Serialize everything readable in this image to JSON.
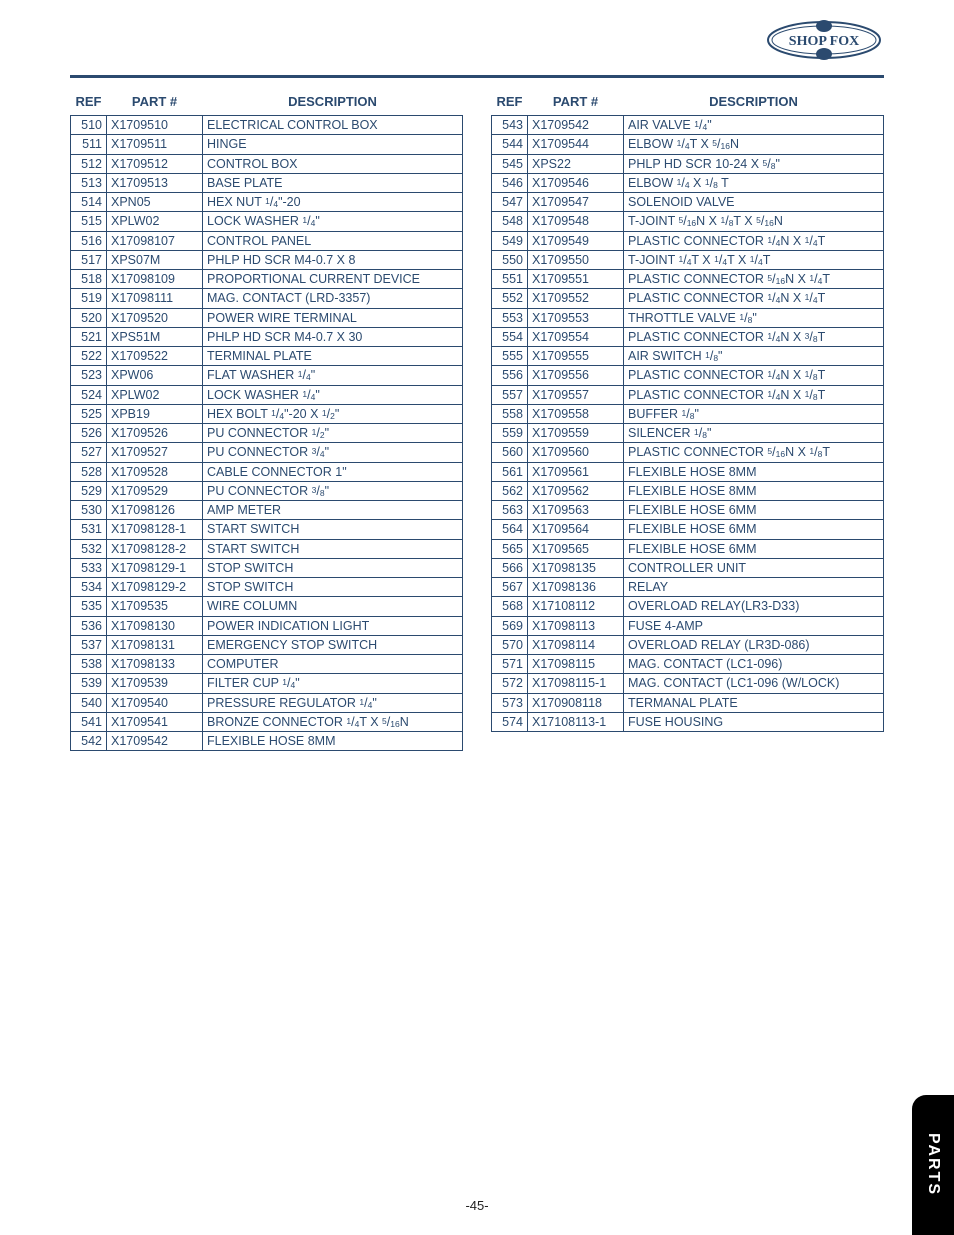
{
  "brand": "SHOP FOX",
  "page_number": "-45-",
  "side_tab": "PARTS",
  "headers": {
    "ref": "REF",
    "part": "PART #",
    "desc": "DESCRIPTION"
  },
  "colors": {
    "ink": "#2b4a6f",
    "rule": "#2b4a6f",
    "tab_bg": "#000000",
    "tab_fg": "#ffffff",
    "bg": "#ffffff"
  },
  "left": [
    {
      "ref": "510",
      "part": "X1709510",
      "desc": "ELECTRICAL CONTROL BOX"
    },
    {
      "ref": "511",
      "part": "X1709511",
      "desc": "HINGE"
    },
    {
      "ref": "512",
      "part": "X1709512",
      "desc": "CONTROL BOX"
    },
    {
      "ref": "513",
      "part": "X1709513",
      "desc": "BASE PLATE"
    },
    {
      "ref": "514",
      "part": "XPN05",
      "desc": "HEX NUT {1/4}\"-20"
    },
    {
      "ref": "515",
      "part": "XPLW02",
      "desc": "LOCK WASHER {1/4}\""
    },
    {
      "ref": "516",
      "part": "X17098107",
      "desc": "CONTROL PANEL"
    },
    {
      "ref": "517",
      "part": "XPS07M",
      "desc": "PHLP HD SCR M4-0.7 X 8"
    },
    {
      "ref": "518",
      "part": "X17098109",
      "desc": "PROPORTIONAL CURRENT DEVICE"
    },
    {
      "ref": "519",
      "part": "X17098111",
      "desc": "MAG. CONTACT (LRD-3357)"
    },
    {
      "ref": "520",
      "part": "X1709520",
      "desc": "POWER WIRE TERMINAL"
    },
    {
      "ref": "521",
      "part": "XPS51M",
      "desc": "PHLP HD SCR M4-0.7 X 30"
    },
    {
      "ref": "522",
      "part": "X1709522",
      "desc": "TERMINAL PLATE"
    },
    {
      "ref": "523",
      "part": "XPW06",
      "desc": "FLAT WASHER {1/4}\""
    },
    {
      "ref": "524",
      "part": "XPLW02",
      "desc": "LOCK WASHER {1/4}\""
    },
    {
      "ref": "525",
      "part": "XPB19",
      "desc": "HEX BOLT  {1/4}\"-20 X {1/2}\""
    },
    {
      "ref": "526",
      "part": "X1709526",
      "desc": "PU CONNECTOR {1/2}\""
    },
    {
      "ref": "527",
      "part": "X1709527",
      "desc": "PU CONNECTOR {3/4}\""
    },
    {
      "ref": "528",
      "part": "X1709528",
      "desc": "CABLE CONNECTOR 1\""
    },
    {
      "ref": "529",
      "part": "X1709529",
      "desc": "PU CONNECTOR {3/8}\""
    },
    {
      "ref": "530",
      "part": "X17098126",
      "desc": "AMP METER"
    },
    {
      "ref": "531",
      "part": "X17098128-1",
      "desc": "START SWITCH"
    },
    {
      "ref": "532",
      "part": "X17098128-2",
      "desc": "START SWITCH"
    },
    {
      "ref": "533",
      "part": "X17098129-1",
      "desc": "STOP SWITCH"
    },
    {
      "ref": "534",
      "part": "X17098129-2",
      "desc": "STOP SWITCH"
    },
    {
      "ref": "535",
      "part": "X1709535",
      "desc": "WIRE COLUMN"
    },
    {
      "ref": "536",
      "part": "X17098130",
      "desc": "POWER INDICATION LIGHT"
    },
    {
      "ref": "537",
      "part": "X17098131",
      "desc": "EMERGENCY STOP SWITCH"
    },
    {
      "ref": "538",
      "part": "X17098133",
      "desc": "COMPUTER"
    },
    {
      "ref": "539",
      "part": "X1709539",
      "desc": "FILTER CUP {1/4}\""
    },
    {
      "ref": "540",
      "part": "X1709540",
      "desc": "PRESSURE REGULATOR {1/4}\""
    },
    {
      "ref": "541",
      "part": "X1709541",
      "desc": "BRONZE CONNECTOR {1/4}T X {5/16}N"
    },
    {
      "ref": "542",
      "part": "X1709542",
      "desc": "FLEXIBLE HOSE 8MM"
    }
  ],
  "right": [
    {
      "ref": "543",
      "part": "X1709542",
      "desc": "AIR VALVE {1/4}\""
    },
    {
      "ref": "544",
      "part": "X1709544",
      "desc": "ELBOW {1/4}T X {5/16}N"
    },
    {
      "ref": "545",
      "part": "XPS22",
      "desc": "PHLP HD SCR 10-24 X {5/8}\""
    },
    {
      "ref": "546",
      "part": "X1709546",
      "desc": "ELBOW {1/4} X {1/8} T"
    },
    {
      "ref": "547",
      "part": "X1709547",
      "desc": "SOLENOID VALVE"
    },
    {
      "ref": "548",
      "part": "X1709548",
      "desc": "T-JOINT {5/16}N X {1/8}T X {5/16}N"
    },
    {
      "ref": "549",
      "part": "X1709549",
      "desc": "PLASTIC CONNECTOR {1/4}N X {1/4}T"
    },
    {
      "ref": "550",
      "part": "X1709550",
      "desc": "T-JOINT {1/4}T X {1/4}T X {1/4}T"
    },
    {
      "ref": "551",
      "part": "X1709551",
      "desc": "PLASTIC CONNECTOR {5/16}N X {1/4}T"
    },
    {
      "ref": "552",
      "part": "X1709552",
      "desc": "PLASTIC CONNECTOR {1/4}N X {1/4}T"
    },
    {
      "ref": "553",
      "part": "X1709553",
      "desc": "THROTTLE VALVE {1/8}\""
    },
    {
      "ref": "554",
      "part": "X1709554",
      "desc": "PLASTIC CONNECTOR {1/4}N X {3/8}T"
    },
    {
      "ref": "555",
      "part": "X1709555",
      "desc": "AIR SWITCH {1/8}\""
    },
    {
      "ref": "556",
      "part": "X1709556",
      "desc": "PLASTIC CONNECTOR {1/4}N X {1/8}T"
    },
    {
      "ref": "557",
      "part": "X1709557",
      "desc": "PLASTIC CONNECTOR {1/4}N X {1/8}T"
    },
    {
      "ref": "558",
      "part": "X1709558",
      "desc": "BUFFER {1/8}\""
    },
    {
      "ref": "559",
      "part": "X1709559",
      "desc": "SILENCER {1/8}\""
    },
    {
      "ref": "560",
      "part": "X1709560",
      "desc": "PLASTIC CONNECTOR {5/16}N X {1/8}T"
    },
    {
      "ref": "561",
      "part": "X1709561",
      "desc": "FLEXIBLE HOSE 8MM"
    },
    {
      "ref": "562",
      "part": "X1709562",
      "desc": "FLEXIBLE HOSE 8MM"
    },
    {
      "ref": "563",
      "part": "X1709563",
      "desc": "FLEXIBLE HOSE 6MM"
    },
    {
      "ref": "564",
      "part": "X1709564",
      "desc": "FLEXIBLE HOSE 6MM"
    },
    {
      "ref": "565",
      "part": "X1709565",
      "desc": "FLEXIBLE HOSE 6MM"
    },
    {
      "ref": "566",
      "part": "X17098135",
      "desc": "CONTROLLER UNIT"
    },
    {
      "ref": "567",
      "part": "X17098136",
      "desc": "RELAY"
    },
    {
      "ref": "568",
      "part": "X17108112",
      "desc": "OVERLOAD RELAY(LR3-D33)"
    },
    {
      "ref": "569",
      "part": "X17098113",
      "desc": "FUSE 4-AMP"
    },
    {
      "ref": "570",
      "part": "X17098114",
      "desc": "OVERLOAD RELAY (LR3D-086)"
    },
    {
      "ref": "571",
      "part": "X17098115",
      "desc": "MAG. CONTACT  (LC1-096)"
    },
    {
      "ref": "572",
      "part": "X17098115-1",
      "desc": "MAG. CONTACT  (LC1-096 (W/LOCK)"
    },
    {
      "ref": "573",
      "part": "X170908118",
      "desc": "TERMANAL PLATE"
    },
    {
      "ref": "574",
      "part": "X17108113-1",
      "desc": "FUSE HOUSING"
    }
  ]
}
